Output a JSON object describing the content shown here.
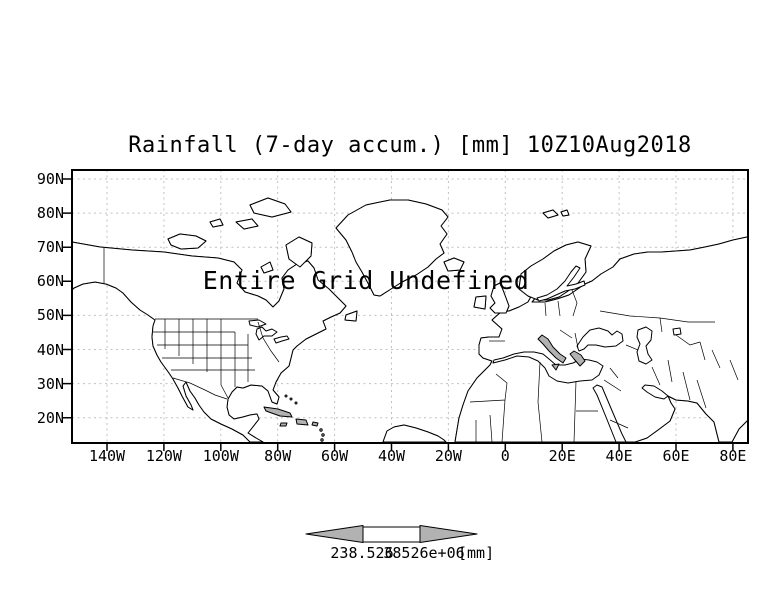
{
  "title": "Rainfall (7-day accum.) [mm] 10Z10Aug2018",
  "overlay_message": "Entire Grid Undefined",
  "axes": {
    "lat_labels": [
      "90N",
      "80N",
      "70N",
      "60N",
      "50N",
      "40N",
      "30N",
      "20N"
    ],
    "lon_labels": [
      "140W",
      "120W",
      "100W",
      "80W",
      "60W",
      "40W",
      "20W",
      "0",
      "20E",
      "40E",
      "60E",
      "80E"
    ]
  },
  "colorbar": {
    "left_value": "238.526",
    "right_value": "38526e+06",
    "unit": "[mm]",
    "arrow_fill": "#b2b2b2"
  },
  "map": {
    "shaded_region_color": "#b2b2b2",
    "shade_boundary_lat": "50N",
    "coastline_color": "#000000",
    "grid_color": "#c0c0c0"
  }
}
